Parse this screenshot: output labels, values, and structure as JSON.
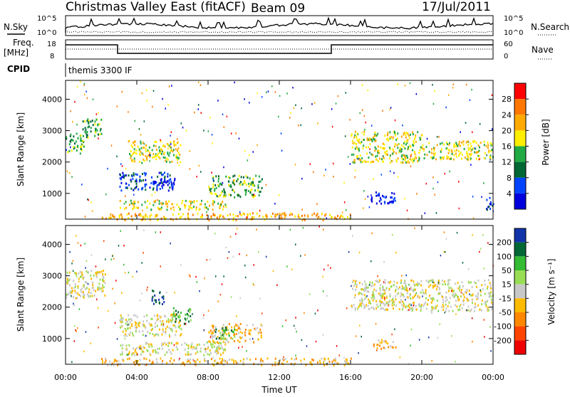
{
  "header": {
    "radar": "Christmas Valley East (fitACF)",
    "beam": "Beam 09",
    "date": "17/Jul/2011"
  },
  "params": {
    "nsky_label": "N.Sky",
    "nsky_ticks": [
      "10^5",
      "10^0"
    ],
    "nsearch_label": "N.Search",
    "nsearch_ticks": [
      "10^5",
      "10^0"
    ],
    "freq_label": "Freq.",
    "freq_unit": "[MHz]",
    "freq_ticks": [
      "18",
      "8"
    ],
    "nave_label": "Nave",
    "nave_ticks": [
      "60",
      "0"
    ],
    "cpid_label": "CPID",
    "cpid_value": "themis 3300 IF"
  },
  "chart_data": [
    {
      "type": "heatmap",
      "name": "power",
      "ylabel": "Slant Range [km]",
      "yticks": [
        1000,
        2000,
        3000,
        4000
      ],
      "ylim": [
        180,
        4600
      ],
      "xlim": [
        0,
        24
      ],
      "colorbar": {
        "label": "Power [dB]",
        "ticks": [
          "28",
          "24",
          "20",
          "16",
          "12",
          "8",
          "4"
        ],
        "colors": [
          "#ff0000",
          "#ff7700",
          "#ffaa00",
          "#ffee00",
          "#22aa44",
          "#006633",
          "#0044ff",
          "#0000dd"
        ]
      },
      "echo_regions": [
        {
          "t": [
            0.0,
            1.0
          ],
          "r": [
            2300,
            3000
          ],
          "level": 4
        },
        {
          "t": [
            0.8,
            2.0
          ],
          "r": [
            2800,
            3400
          ],
          "level": 4
        },
        {
          "t": [
            3.0,
            6.0
          ],
          "r": [
            1100,
            1700
          ],
          "level": 6
        },
        {
          "t": [
            4.8,
            6.2
          ],
          "r": [
            1300,
            1500
          ],
          "level": 7
        },
        {
          "t": [
            3.5,
            6.5
          ],
          "r": [
            2000,
            2700
          ],
          "level": 3
        },
        {
          "t": [
            8.0,
            11.0
          ],
          "r": [
            900,
            1600
          ],
          "level": 4
        },
        {
          "t": [
            3.0,
            9.0
          ],
          "r": [
            500,
            800
          ],
          "level": 3
        },
        {
          "t": [
            16.0,
            20.0
          ],
          "r": [
            2000,
            3000
          ],
          "level": 3
        },
        {
          "t": [
            17.0,
            18.5
          ],
          "r": [
            700,
            1100
          ],
          "level": 7
        },
        {
          "t": [
            20.0,
            24.0
          ],
          "r": [
            2100,
            2700
          ],
          "level": 3
        },
        {
          "t": [
            2.0,
            16.0
          ],
          "r": [
            180,
            400
          ],
          "level": 2
        },
        {
          "t": [
            23.5,
            24.0
          ],
          "r": [
            500,
            900
          ],
          "level": 6
        }
      ]
    },
    {
      "type": "heatmap",
      "name": "velocity",
      "ylabel": "Slant Range [km]",
      "yticks": [
        1000,
        2000,
        3000,
        4000
      ],
      "ylim": [
        180,
        4600
      ],
      "xlim": [
        0,
        24
      ],
      "xticks": [
        "00:00",
        "04:00",
        "08:00",
        "12:00",
        "16:00",
        "20:00",
        "00:00"
      ],
      "xlabel": "Time UT",
      "colorbar": {
        "label": "Velocity [m s⁻¹]",
        "ticks": [
          "200",
          "100",
          "50",
          "15",
          "-15",
          "-50",
          "-100",
          "-200"
        ],
        "colors": [
          "#1133aa",
          "#006633",
          "#33bb33",
          "#99dd55",
          "#c8c8c8",
          "#ffbb00",
          "#ff8800",
          "#ff4400",
          "#ee0000"
        ]
      },
      "echo_regions": [
        {
          "t": [
            0.0,
            2.2
          ],
          "r": [
            2300,
            3200
          ],
          "level": 4
        },
        {
          "t": [
            3.0,
            6.5
          ],
          "r": [
            1100,
            1800
          ],
          "level": 4
        },
        {
          "t": [
            4.8,
            5.5
          ],
          "r": [
            2100,
            2600
          ],
          "level": 0
        },
        {
          "t": [
            6.0,
            7.0
          ],
          "r": [
            1500,
            2000
          ],
          "level": 2
        },
        {
          "t": [
            8.0,
            11.0
          ],
          "r": [
            900,
            1500
          ],
          "level": 5
        },
        {
          "t": [
            8.3,
            9.5
          ],
          "r": [
            1000,
            1400
          ],
          "level": 2
        },
        {
          "t": [
            3.0,
            9.0
          ],
          "r": [
            500,
            900
          ],
          "level": 4
        },
        {
          "t": [
            16.0,
            24.0
          ],
          "r": [
            1900,
            2900
          ],
          "level": 4
        },
        {
          "t": [
            17.2,
            18.5
          ],
          "r": [
            700,
            1000
          ],
          "level": 5
        },
        {
          "t": [
            2.0,
            16.0
          ],
          "r": [
            180,
            400
          ],
          "level": 5
        }
      ]
    }
  ]
}
